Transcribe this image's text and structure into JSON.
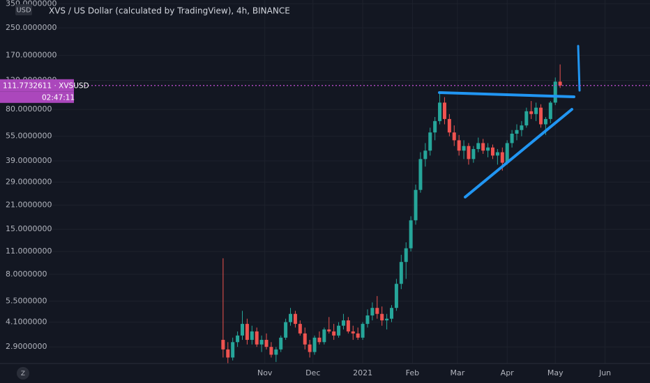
{
  "chart_data": {
    "type": "candlestick",
    "title": "XVS / US Dollar (calculated by TradingView), 4h, BINANCE",
    "currency": "USD",
    "log_scale": true,
    "up_color": "#26a69a",
    "down_color": "#ef5350",
    "price_line_color": "#ab47bc",
    "price_label": "111.7732611 · XVSUSD",
    "countdown": "02:47:11",
    "xlim": [
      -134,
      271
    ],
    "xticks": [
      {
        "value": 31,
        "label": "Nov"
      },
      {
        "value": 61,
        "label": "Dec"
      },
      {
        "value": 92,
        "label": "2021"
      },
      {
        "value": 123,
        "label": "Feb"
      },
      {
        "value": 151,
        "label": "Mar"
      },
      {
        "value": 182,
        "label": "Apr"
      },
      {
        "value": 212,
        "label": "May"
      },
      {
        "value": 243,
        "label": "Jun"
      }
    ],
    "ylim": [
      2.3,
      369
    ],
    "yticks": [
      {
        "value": 350,
        "label": "350.0000000"
      },
      {
        "value": 250,
        "label": "250.0000000"
      },
      {
        "value": 170,
        "label": "170.0000000"
      },
      {
        "value": 120,
        "label": "120.0000000"
      },
      {
        "value": 80,
        "label": "80.0000000"
      },
      {
        "value": 55,
        "label": "55.0000000"
      },
      {
        "value": 39,
        "label": "39.0000000"
      },
      {
        "value": 29,
        "label": "29.0000000"
      },
      {
        "value": 21,
        "label": "21.0000000"
      },
      {
        "value": 15,
        "label": "15.0000000"
      },
      {
        "value": 11,
        "label": "11.0000000"
      },
      {
        "value": 8,
        "label": "8.0000000"
      },
      {
        "value": 5.5,
        "label": "5.5000000"
      },
      {
        "value": 4.1,
        "label": "4.1000000"
      },
      {
        "value": 2.9,
        "label": "2.9000000"
      }
    ],
    "x": [
      5,
      8,
      11,
      14,
      17,
      20,
      23,
      26,
      29,
      32,
      35,
      38,
      41,
      44,
      47,
      50,
      53,
      56,
      59,
      62,
      65,
      68,
      71,
      74,
      77,
      80,
      83,
      86,
      89,
      92,
      95,
      98,
      101,
      104,
      107,
      110,
      113,
      116,
      119,
      122,
      125,
      128,
      131,
      134,
      137,
      140,
      143,
      146,
      149,
      152,
      155,
      158,
      161,
      164,
      167,
      170,
      173,
      176,
      179,
      182,
      185,
      188,
      191,
      194,
      197,
      200,
      203,
      206,
      209,
      212,
      215
    ],
    "open": [
      3.2,
      2.8,
      2.5,
      3.1,
      3.4,
      4.0,
      3.2,
      3.6,
      3.0,
      3.2,
      2.9,
      2.6,
      2.8,
      3.3,
      4.1,
      4.6,
      4.0,
      3.5,
      3.0,
      2.7,
      3.3,
      3.1,
      3.7,
      3.6,
      3.4,
      3.9,
      4.2,
      3.6,
      3.5,
      3.3,
      4.0,
      4.5,
      5.0,
      4.6,
      4.2,
      4.3,
      5.0,
      7.0,
      9.5,
      11.5,
      17,
      26,
      40,
      45,
      58,
      68,
      88,
      70,
      58,
      52,
      45,
      48,
      40,
      46,
      50,
      45,
      47,
      42,
      44,
      38,
      50,
      57,
      60,
      64,
      78,
      75,
      82,
      65,
      70,
      88,
      118
    ],
    "high": [
      10,
      3.1,
      3.3,
      3.6,
      4.8,
      4.3,
      3.9,
      3.8,
      3.4,
      3.5,
      3.1,
      2.9,
      3.4,
      4.3,
      5.0,
      4.8,
      4.2,
      3.8,
      3.2,
      3.4,
      3.6,
      3.8,
      4.4,
      4.0,
      4.1,
      4.6,
      4.4,
      3.9,
      3.8,
      4.1,
      4.9,
      5.4,
      5.9,
      5.1,
      4.6,
      5.2,
      7.5,
      10.5,
      12.5,
      18,
      28,
      44,
      50,
      62,
      72,
      102,
      95,
      75,
      64,
      56,
      52,
      50,
      48,
      54,
      53,
      50,
      49,
      46,
      47,
      52,
      60,
      65,
      68,
      82,
      90,
      88,
      86,
      72,
      90,
      125,
      150
    ],
    "low": [
      2.5,
      2.3,
      2.4,
      2.9,
      3.2,
      3.0,
      3.0,
      2.9,
      2.7,
      2.8,
      2.5,
      2.35,
      2.7,
      3.2,
      3.9,
      3.8,
      3.4,
      2.8,
      2.5,
      2.6,
      3.0,
      3.0,
      3.5,
      3.2,
      3.3,
      3.7,
      3.5,
      3.2,
      3.2,
      3.2,
      3.8,
      4.2,
      4.3,
      3.9,
      3.7,
      4.1,
      4.8,
      6.5,
      7.5,
      11,
      16,
      25,
      36,
      42,
      52,
      65,
      65,
      55,
      48,
      42,
      40,
      37,
      38,
      44,
      43,
      41,
      40,
      37,
      34,
      37,
      47,
      52,
      55,
      62,
      70,
      68,
      62,
      56,
      66,
      85,
      108
    ],
    "close": [
      2.8,
      2.5,
      3.1,
      3.4,
      4.0,
      3.2,
      3.6,
      3.0,
      3.2,
      2.9,
      2.6,
      2.8,
      3.3,
      4.1,
      4.6,
      4.0,
      3.5,
      3.0,
      2.7,
      3.3,
      3.1,
      3.7,
      3.6,
      3.4,
      3.9,
      4.2,
      3.6,
      3.5,
      3.3,
      4.0,
      4.5,
      5.0,
      4.6,
      4.2,
      4.3,
      5.0,
      7.0,
      9.5,
      11.5,
      17,
      26,
      40,
      45,
      58,
      68,
      88,
      70,
      58,
      52,
      45,
      48,
      40,
      46,
      50,
      45,
      47,
      42,
      44,
      38,
      50,
      57,
      60,
      64,
      78,
      75,
      82,
      65,
      70,
      88,
      118,
      111.7732611
    ]
  }
}
